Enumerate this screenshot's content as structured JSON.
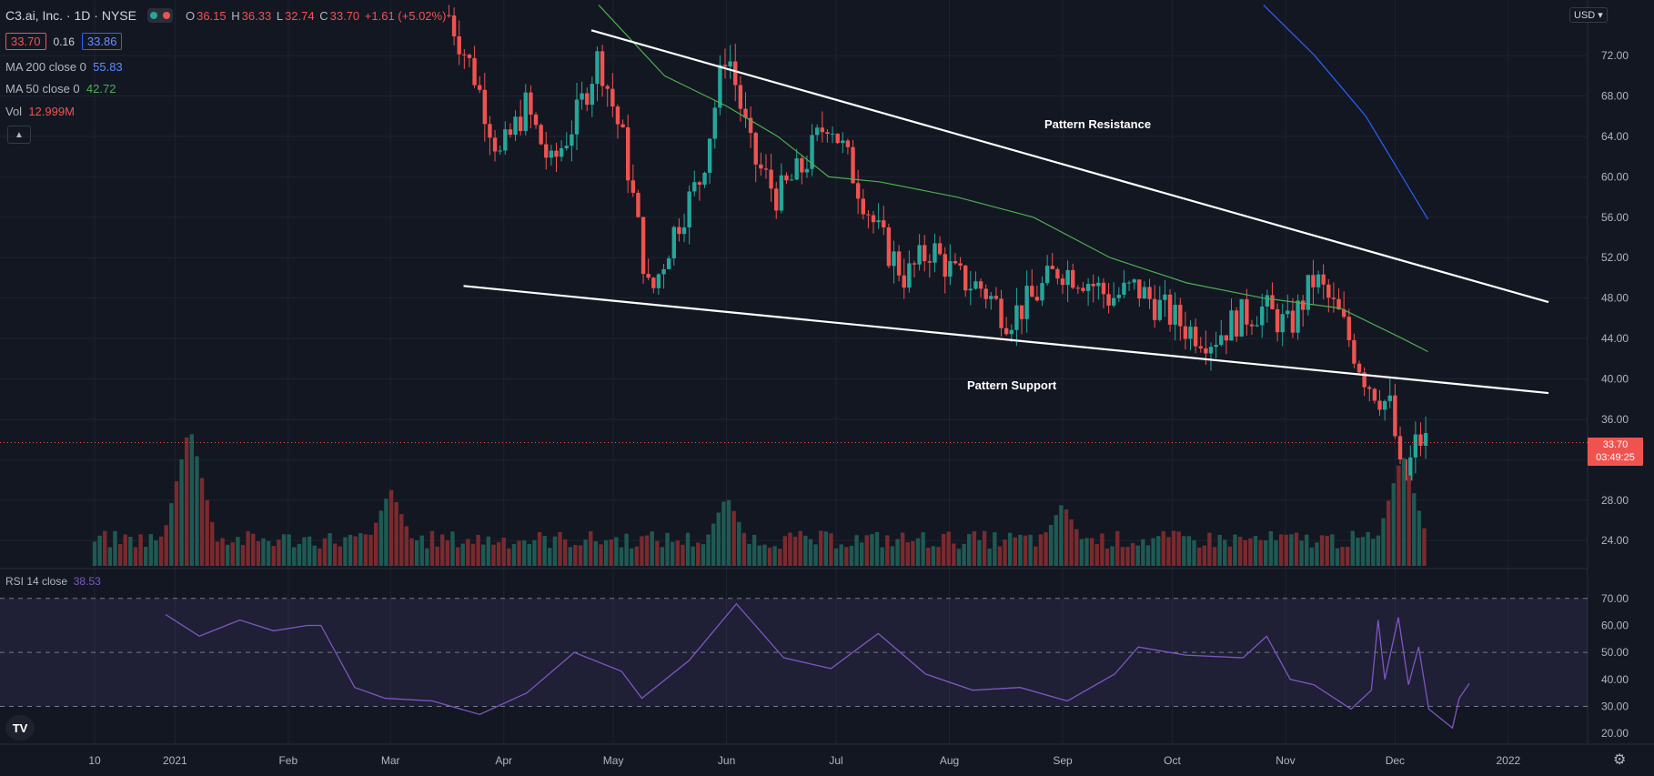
{
  "symbol": {
    "name": "C3.ai, Inc.",
    "interval": "1D",
    "exchange": "NYSE"
  },
  "ohlc": {
    "o_label": "O",
    "o": "36.15",
    "h_label": "H",
    "h": "36.33",
    "l_label": "L",
    "l": "32.74",
    "c_label": "C",
    "c": "33.70",
    "change": "+1.61 (+5.02%)"
  },
  "quote": {
    "bid": "33.70",
    "spread": "0.16",
    "ask": "33.86"
  },
  "indicators": {
    "ma200": {
      "label": "MA 200 close 0",
      "value": "55.83",
      "color": "#2962ff"
    },
    "ma50": {
      "label": "MA 50 close 0",
      "value": "42.72",
      "color": "#4caf50"
    },
    "vol": {
      "label": "Vol",
      "value": "12.999M"
    },
    "rsi": {
      "label": "RSI 14 close",
      "value": "38.53",
      "color": "#7e57c2"
    }
  },
  "price_label": {
    "price": "33.70",
    "countdown": "03:49:25"
  },
  "currency": "USD",
  "logo": "TV",
  "icons": {
    "collapse": "chevron-up-icon",
    "settings": "gear-icon"
  },
  "colors": {
    "up": "#26a69a",
    "down": "#ef5350",
    "background": "#131722",
    "trendline": "#ffffff"
  },
  "annotations": {
    "resistance": "Pattern Resistance",
    "support": "Pattern Support"
  },
  "chart_data": {
    "type": "candlestick",
    "x_axis": {
      "tick_labels": [
        "10",
        "2021",
        "Feb",
        "Mar",
        "Apr",
        "May",
        "Jun",
        "Jul",
        "Aug",
        "Sep",
        "Oct",
        "Nov",
        "Dec",
        "2022"
      ]
    },
    "y_axis": {
      "ylim": [
        21.5,
        77.5
      ],
      "tick_labels": [
        "72.00",
        "68.00",
        "64.00",
        "60.00",
        "56.00",
        "52.00",
        "48.00",
        "44.00",
        "40.00",
        "36.00",
        "32.00",
        "28.00",
        "24.00"
      ]
    },
    "rsi_axis": {
      "ylim": [
        16,
        76
      ],
      "tick_labels": [
        "70.00",
        "60.00",
        "50.00",
        "40.00",
        "30.00",
        "20.00"
      ],
      "band": [
        30,
        70
      ],
      "midline": 50
    },
    "price_path": [
      [
        "2021-03-17",
        76
      ],
      [
        "2021-03-24",
        70
      ],
      [
        "2021-03-31",
        62
      ],
      [
        "2021-04-07",
        67
      ],
      [
        "2021-04-14",
        61
      ],
      [
        "2021-04-21",
        66
      ],
      [
        "2021-04-27",
        72
      ],
      [
        "2021-05-04",
        63
      ],
      [
        "2021-05-11",
        48
      ],
      [
        "2021-05-18",
        55
      ],
      [
        "2021-05-25",
        60
      ],
      [
        "2021-06-01",
        73
      ],
      [
        "2021-06-08",
        62
      ],
      [
        "2021-06-15",
        58
      ],
      [
        "2021-06-22",
        61
      ],
      [
        "2021-06-29",
        66
      ],
      [
        "2021-07-06",
        60
      ],
      [
        "2021-07-13",
        54
      ],
      [
        "2021-07-20",
        50
      ],
      [
        "2021-07-27",
        53
      ],
      [
        "2021-08-03",
        50
      ],
      [
        "2021-08-10",
        49
      ],
      [
        "2021-08-17",
        46
      ],
      [
        "2021-08-24",
        48
      ],
      [
        "2021-08-31",
        51
      ],
      [
        "2021-09-07",
        50
      ],
      [
        "2021-09-14",
        48
      ],
      [
        "2021-09-21",
        49
      ],
      [
        "2021-09-28",
        47
      ],
      [
        "2021-10-05",
        45
      ],
      [
        "2021-10-12",
        44
      ],
      [
        "2021-10-19",
        46
      ],
      [
        "2021-10-26",
        47
      ],
      [
        "2021-11-02",
        45
      ],
      [
        "2021-11-09",
        50
      ],
      [
        "2021-11-16",
        46
      ],
      [
        "2021-11-23",
        40
      ],
      [
        "2021-11-30",
        37
      ],
      [
        "2021-12-03",
        29
      ],
      [
        "2021-12-07",
        34
      ],
      [
        "2021-12-10",
        33.7
      ]
    ],
    "ma50": [
      [
        "2021-04-27",
        77
      ],
      [
        "2021-05-15",
        70
      ],
      [
        "2021-06-01",
        67
      ],
      [
        "2021-06-15",
        64
      ],
      [
        "2021-06-29",
        60
      ],
      [
        "2021-07-13",
        59.5
      ],
      [
        "2021-08-03",
        58
      ],
      [
        "2021-08-24",
        56
      ],
      [
        "2021-09-14",
        52
      ],
      [
        "2021-10-05",
        49.5
      ],
      [
        "2021-10-26",
        48
      ],
      [
        "2021-11-16",
        47
      ],
      [
        "2021-12-03",
        44
      ],
      [
        "2021-12-10",
        42.7
      ]
    ],
    "ma200": [
      [
        "2021-10-26",
        77
      ],
      [
        "2021-11-09",
        72
      ],
      [
        "2021-11-23",
        66
      ],
      [
        "2021-12-03",
        60
      ],
      [
        "2021-12-10",
        55.8
      ]
    ],
    "trendlines": [
      {
        "name": "Pattern Resistance",
        "from": [
          "2021-04-25",
          74.5
        ],
        "to": [
          "2022-01-12",
          47.6
        ]
      },
      {
        "name": "Pattern Support",
        "from": [
          "2021-03-21",
          49.2
        ],
        "to": [
          "2022-01-12",
          38.6
        ]
      }
    ],
    "volume_spikes": [
      [
        "2021-01-05",
        1.0
      ],
      [
        "2021-03-01",
        0.55
      ],
      [
        "2021-06-01",
        0.5
      ],
      [
        "2021-09-01",
        0.45
      ],
      [
        "2021-12-03",
        0.8
      ]
    ],
    "rsi": [
      [
        "2021-01-18",
        64
      ],
      [
        "2021-01-28",
        56
      ],
      [
        "2021-02-09",
        62
      ],
      [
        "2021-02-19",
        58
      ],
      [
        "2021-03-01",
        60
      ],
      [
        "2021-03-05",
        60
      ],
      [
        "2021-03-15",
        37
      ],
      [
        "2021-03-24",
        33
      ],
      [
        "2021-04-07",
        32
      ],
      [
        "2021-04-21",
        27
      ],
      [
        "2021-05-05",
        35
      ],
      [
        "2021-05-19",
        50
      ],
      [
        "2021-06-02",
        43
      ],
      [
        "2021-06-08",
        33
      ],
      [
        "2021-06-22",
        47
      ],
      [
        "2021-07-06",
        68
      ],
      [
        "2021-07-20",
        48
      ],
      [
        "2021-08-03",
        44
      ],
      [
        "2021-08-17",
        57
      ],
      [
        "2021-08-31",
        42
      ],
      [
        "2021-09-14",
        36
      ],
      [
        "2021-09-28",
        37
      ],
      [
        "2021-10-12",
        32
      ],
      [
        "2021-10-26",
        42
      ],
      [
        "2021-11-02",
        52
      ],
      [
        "2021-11-16",
        49
      ],
      [
        "2021-12-03",
        48
      ],
      [
        "2021-12-10",
        56
      ],
      [
        "2021-12-17",
        40
      ],
      [
        "2021-12-24",
        38
      ],
      [
        "2022-01-04",
        29
      ],
      [
        "2022-01-10",
        36
      ],
      [
        "2022-01-12",
        62
      ],
      [
        "2022-01-14",
        40
      ],
      [
        "2022-01-18",
        63
      ],
      [
        "2022-01-21",
        38
      ],
      [
        "2022-01-24",
        52
      ],
      [
        "2022-01-27",
        29
      ],
      [
        "2022-01-31",
        25
      ],
      [
        "2022-02-03",
        22
      ],
      [
        "2022-02-05",
        33
      ],
      [
        "2022-02-08",
        38.5
      ]
    ]
  }
}
